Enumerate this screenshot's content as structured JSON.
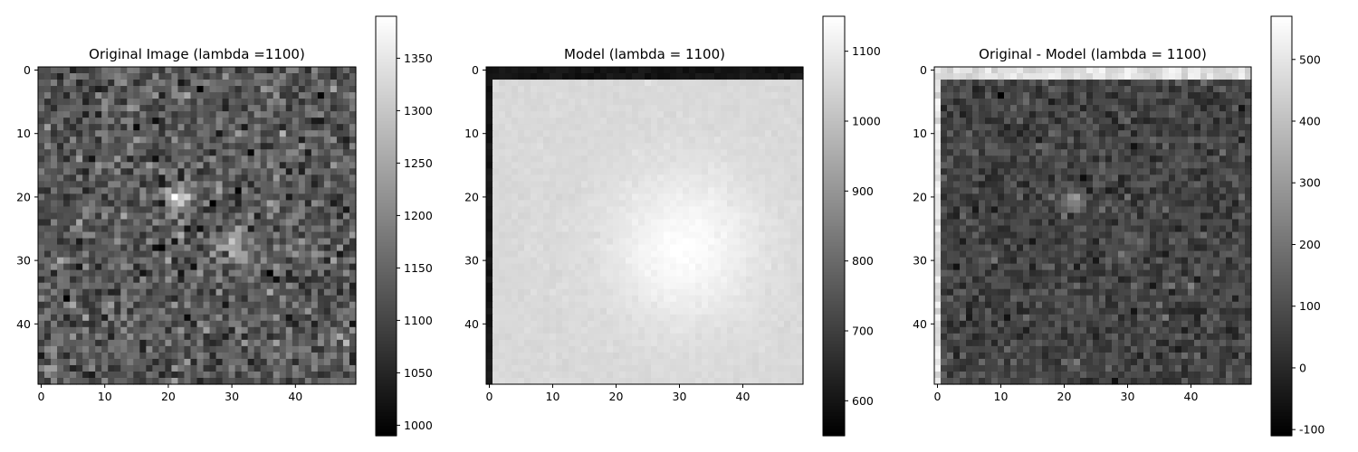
{
  "chart_data": [
    {
      "type": "heatmap",
      "title": "Original Image (lambda =1100)",
      "colormap": "gray",
      "shape": [
        50,
        50
      ],
      "xlim": [
        -0.5,
        49.5
      ],
      "ylim": [
        49.5,
        -0.5
      ],
      "x_ticks": [
        0,
        10,
        20,
        30,
        40
      ],
      "y_ticks": [
        0,
        10,
        20,
        30,
        40
      ],
      "colorbar": {
        "min": 990,
        "max": 1390,
        "ticks": [
          1000,
          1050,
          1100,
          1150,
          1200,
          1250,
          1300,
          1350
        ]
      },
      "features": {
        "background_mean": 1130,
        "noise_sd": 45,
        "sources": [
          {
            "x": 21.5,
            "y": 20.5,
            "amplitude": 230,
            "sigma": 1.2
          },
          {
            "x": 30.5,
            "y": 27.5,
            "amplitude": 110,
            "sigma": 1.8
          }
        ]
      }
    },
    {
      "type": "heatmap",
      "title": "Model (lambda = 1100)",
      "colormap": "gray",
      "shape": [
        50,
        50
      ],
      "xlim": [
        -0.5,
        49.5
      ],
      "ylim": [
        49.5,
        -0.5
      ],
      "x_ticks": [
        0,
        10,
        20,
        30,
        40
      ],
      "y_ticks": [
        0,
        10,
        20,
        30,
        40
      ],
      "colorbar": {
        "min": 550,
        "max": 1150,
        "ticks": [
          600,
          700,
          800,
          900,
          1000,
          1100
        ]
      },
      "features": {
        "background_mean": 1060,
        "edge_value": 580,
        "peak_value": 1145,
        "peak_center": {
          "x": 31,
          "y": 28
        }
      }
    },
    {
      "type": "heatmap",
      "title": "Original - Model (lambda = 1100)",
      "colormap": "gray",
      "shape": [
        50,
        50
      ],
      "xlim": [
        -0.5,
        49.5
      ],
      "ylim": [
        49.5,
        -0.5
      ],
      "x_ticks": [
        0,
        10,
        20,
        30,
        40
      ],
      "y_ticks": [
        0,
        10,
        20,
        30,
        40
      ],
      "colorbar": {
        "min": -110,
        "max": 570,
        "ticks": [
          -100,
          0,
          100,
          200,
          300,
          400,
          500
        ]
      },
      "features": {
        "background_mean": 70,
        "edge_value": 550,
        "noise_sd": 45
      }
    }
  ]
}
